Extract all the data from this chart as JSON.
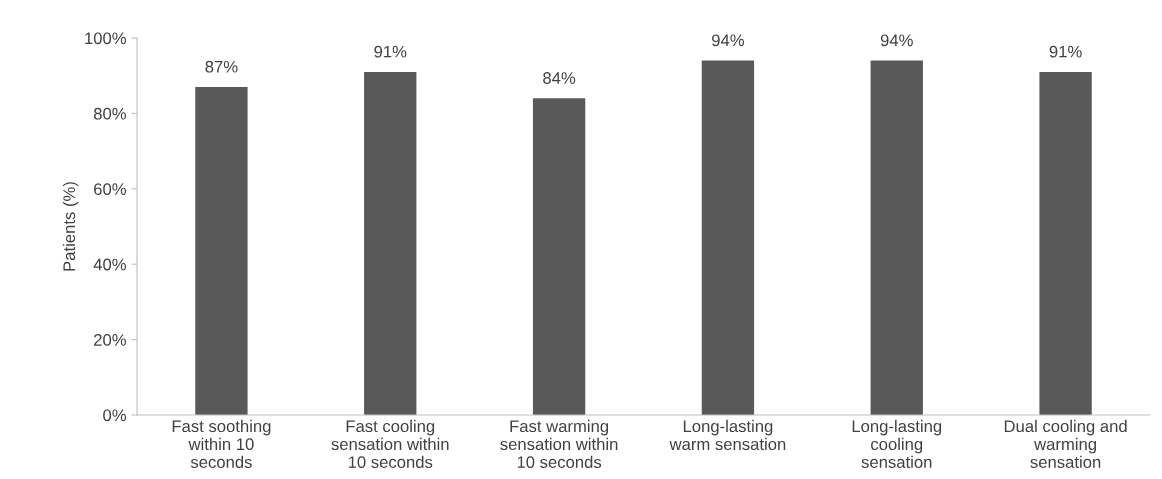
{
  "chart_data": {
    "type": "bar",
    "ylabel": "Patients (%)",
    "categories": [
      "Fast soothing\nwithin 10\nseconds",
      "Fast cooling\nsensation within\n10 seconds",
      "Fast warming\nsensation within\n10 seconds",
      "Long-lasting\nwarm sensation",
      "Long-lasting\ncooling\nsensation",
      "Dual cooling and\nwarming\nsensation"
    ],
    "values": [
      87,
      91,
      84,
      94,
      94,
      91
    ],
    "value_labels": [
      "87%",
      "91%",
      "84%",
      "94%",
      "94%",
      "91%"
    ],
    "color": "#595959",
    "ylim": [
      0,
      100
    ],
    "yticks": [
      {
        "value": 0,
        "label": "0%"
      },
      {
        "value": 20,
        "label": "20%"
      },
      {
        "value": 40,
        "label": "40%"
      },
      {
        "value": 60,
        "label": "60%"
      },
      {
        "value": 80,
        "label": "80%"
      },
      {
        "value": 100,
        "label": "100%"
      }
    ],
    "grid": false
  }
}
